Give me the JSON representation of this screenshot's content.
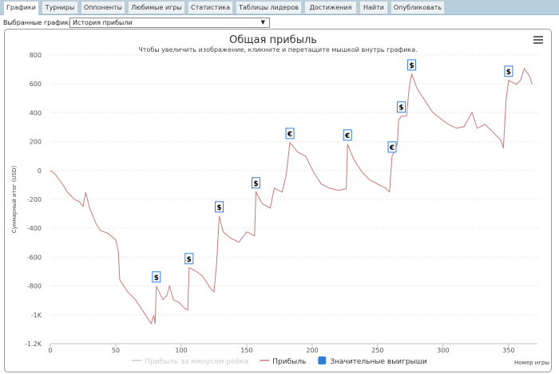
{
  "tabs": [
    "Графики",
    "Турниры",
    "Оппоненты",
    "Любимые игры",
    "Статистика",
    "Таблицы лидеров",
    "Достижения",
    "Найти",
    "Опубликовать"
  ],
  "active_tab": "Графики",
  "selector": {
    "label": "Выбранные графики:",
    "value": "История прибыли"
  },
  "menu_icon": "hamburger-icon",
  "chart_data": {
    "type": "line",
    "title": "Общая прибыль",
    "subtitle": "Чтобы увеличить изображение, кликните и перетащите мышкой внутрь графика.",
    "xlabel": "Номер игры",
    "ylabel": "Суммарный итог (USD)",
    "xlim": [
      0,
      372
    ],
    "ylim": [
      -1200,
      800
    ],
    "xticks": [
      "0",
      "50",
      "100",
      "150",
      "200",
      "250",
      "300",
      "350"
    ],
    "yticks": [
      "800",
      "600",
      "400",
      "200",
      "0",
      "-200",
      "-400",
      "-600",
      "-800",
      "-1K",
      "-1.2K"
    ],
    "grid": true,
    "legend": "bottom",
    "legend_items": [
      {
        "name": "Прибыль за минусом рейка",
        "color": "#cccccc",
        "hidden": true
      },
      {
        "name": "Прибыль",
        "color": "#c77b7b"
      },
      {
        "name": "Значительные выигрыши",
        "color": "#2f7ed8"
      }
    ],
    "series": [
      {
        "name": "Прибыль",
        "color": "#c77b7b",
        "points": [
          [
            0,
            0
          ],
          [
            4,
            -28
          ],
          [
            7,
            -66
          ],
          [
            10,
            -105
          ],
          [
            13,
            -150
          ],
          [
            16,
            -177
          ],
          [
            19,
            -204
          ],
          [
            22,
            -215
          ],
          [
            25,
            -249
          ],
          [
            27,
            -150
          ],
          [
            30,
            -260
          ],
          [
            35,
            -370
          ],
          [
            38,
            -414
          ],
          [
            44,
            -436
          ],
          [
            50,
            -480
          ],
          [
            52,
            -564
          ],
          [
            53,
            -757
          ],
          [
            59,
            -840
          ],
          [
            65,
            -895
          ],
          [
            71,
            -978
          ],
          [
            77,
            -1061
          ],
          [
            79,
            -1006
          ],
          [
            80,
            -1061
          ],
          [
            81,
            -801
          ],
          [
            83,
            -840
          ],
          [
            86,
            -895
          ],
          [
            89,
            -867
          ],
          [
            91,
            -801
          ],
          [
            94,
            -895
          ],
          [
            98,
            -912
          ],
          [
            102,
            -950
          ],
          [
            105,
            -967
          ],
          [
            106,
            -674
          ],
          [
            110,
            -691
          ],
          [
            116,
            -729
          ],
          [
            122,
            -812
          ],
          [
            125,
            -840
          ],
          [
            127,
            -646
          ],
          [
            129,
            -315
          ],
          [
            132,
            -425
          ],
          [
            138,
            -470
          ],
          [
            144,
            -497
          ],
          [
            150,
            -425
          ],
          [
            156,
            -453
          ],
          [
            157,
            -149
          ],
          [
            162,
            -232
          ],
          [
            168,
            -260
          ],
          [
            171,
            -122
          ],
          [
            177,
            -149
          ],
          [
            180,
            -39
          ],
          [
            183,
            193
          ],
          [
            189,
            127
          ],
          [
            195,
            99
          ],
          [
            201,
            -11
          ],
          [
            207,
            -94
          ],
          [
            213,
            -122
          ],
          [
            220,
            -138
          ],
          [
            226,
            -127
          ],
          [
            227,
            182
          ],
          [
            232,
            72
          ],
          [
            238,
            -11
          ],
          [
            244,
            -66
          ],
          [
            250,
            -94
          ],
          [
            256,
            -122
          ],
          [
            259,
            -149
          ],
          [
            261,
            99
          ],
          [
            265,
            182
          ],
          [
            266,
            348
          ],
          [
            268,
            376
          ],
          [
            272,
            376
          ],
          [
            274,
            569
          ],
          [
            276,
            668
          ],
          [
            280,
            569
          ],
          [
            286,
            486
          ],
          [
            292,
            403
          ],
          [
            298,
            359
          ],
          [
            304,
            320
          ],
          [
            310,
            293
          ],
          [
            316,
            304
          ],
          [
            322,
            403
          ],
          [
            326,
            293
          ],
          [
            332,
            320
          ],
          [
            338,
            265
          ],
          [
            344,
            210
          ],
          [
            346,
            155
          ],
          [
            348,
            486
          ],
          [
            350,
            624
          ],
          [
            356,
            597
          ],
          [
            359,
            624
          ],
          [
            362,
            707
          ],
          [
            366,
            652
          ],
          [
            368,
            597
          ]
        ]
      }
    ],
    "markers": [
      {
        "x": 81,
        "y": -801,
        "symbol": "$"
      },
      {
        "x": 106,
        "y": -674,
        "symbol": "$"
      },
      {
        "x": 129,
        "y": -315,
        "symbol": "$"
      },
      {
        "x": 157,
        "y": -149,
        "symbol": "$"
      },
      {
        "x": 183,
        "y": 193,
        "symbol": "€"
      },
      {
        "x": 227,
        "y": 182,
        "symbol": "€"
      },
      {
        "x": 261,
        "y": 99,
        "symbol": "€"
      },
      {
        "x": 268,
        "y": 376,
        "symbol": "$"
      },
      {
        "x": 276,
        "y": 668,
        "symbol": "$"
      },
      {
        "x": 350,
        "y": 624,
        "symbol": "$"
      }
    ]
  }
}
